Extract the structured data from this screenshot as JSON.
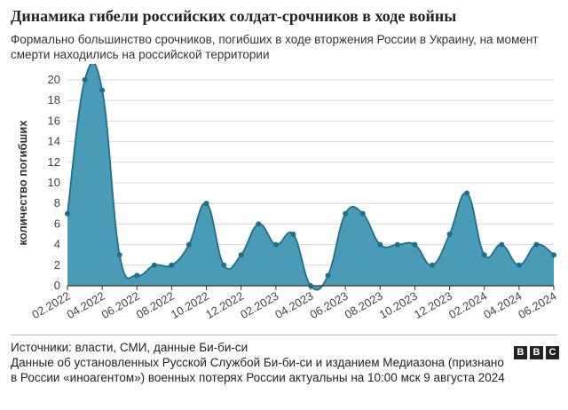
{
  "title": "Динамика гибели российских солдат-срочников в ходе войны",
  "subtitle": "Формально большинство срочников, погибших в ходе вторжения России в Украину, на момент смерти находились на российской территории",
  "footer": {
    "sources": "Источники: власти, СМИ, данные Би-би-си",
    "note": "Данные об установленных Русской Службой Би-би-си и изданием Медиазона (признано в России «иноагентом») военных потерях России актуальны на 10:00 мск 9 августа 2024",
    "logo": [
      "B",
      "B",
      "C"
    ]
  },
  "colors": {
    "fill": "#4a9bb8",
    "line": "#1f6e8a",
    "point": "#1f6e8a",
    "grid": "#d6d6d6"
  },
  "chart_data": {
    "type": "area",
    "title": "Динамика гибели российских солдат-срочников в ходе войны",
    "ylabel": "количество погибших",
    "xlabel": "",
    "ylim": [
      0,
      20
    ],
    "yticks": [
      0,
      2,
      4,
      6,
      8,
      10,
      12,
      14,
      16,
      18,
      20
    ],
    "grid": true,
    "x": [
      "02.2022",
      "03.2022",
      "04.2022",
      "05.2022",
      "06.2022",
      "07.2022",
      "08.2022",
      "09.2022",
      "10.2022",
      "11.2022",
      "12.2022",
      "01.2023",
      "02.2023",
      "03.2023",
      "04.2023",
      "05.2023",
      "06.2023",
      "07.2023",
      "08.2023",
      "09.2023",
      "10.2023",
      "11.2023",
      "12.2023",
      "01.2024",
      "02.2024",
      "03.2024",
      "04.2024",
      "05.2024",
      "06.2024"
    ],
    "values": [
      7,
      20,
      19,
      3,
      1,
      2,
      2,
      4,
      8,
      2,
      3,
      6,
      4,
      5,
      0,
      1,
      7,
      7,
      4,
      4,
      4,
      2,
      5,
      9,
      3,
      4,
      2,
      4,
      3
    ],
    "xtick_labels": [
      "02.2022",
      "04.2022",
      "06.2022",
      "08.2022",
      "10.2022",
      "12.2022",
      "02.2023",
      "04.2023",
      "06.2023",
      "08.2023",
      "10.2023",
      "12.2023",
      "02.2024",
      "04.2024",
      "06.2024"
    ]
  }
}
